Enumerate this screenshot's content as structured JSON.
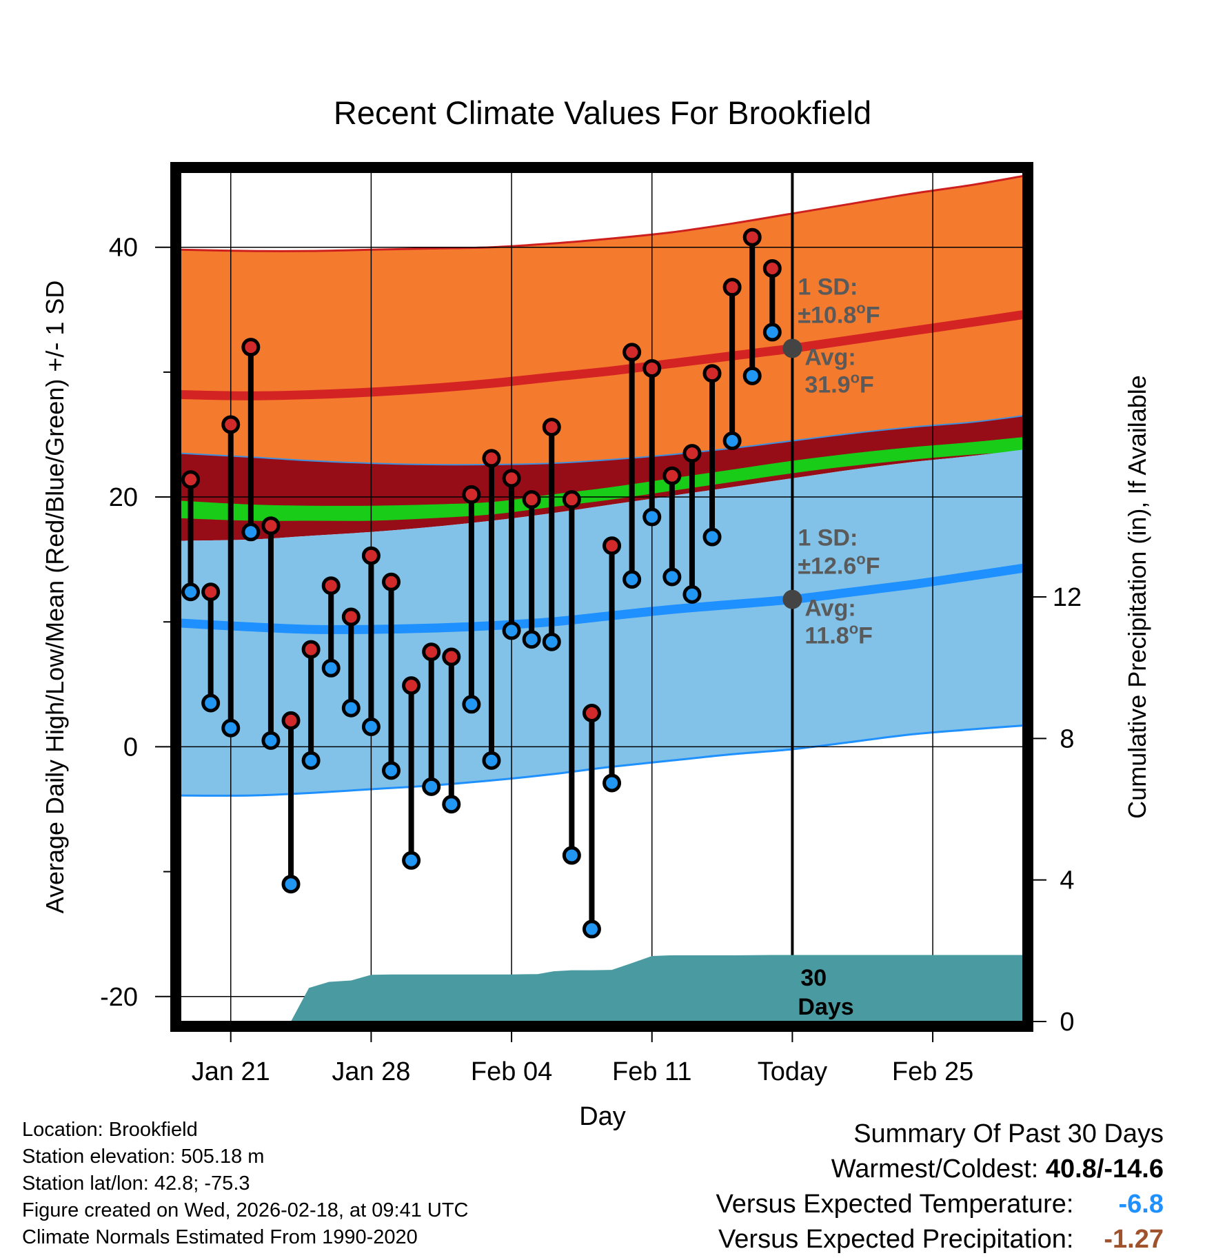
{
  "chart_data": {
    "type": "line",
    "title": "Recent Climate Values For Brookfield",
    "xlabel": "Day",
    "ylabel": "Average Daily High/Low/Mean (Red/Blue/Green) +/- 1 SD",
    "ylabel_right": "Cumulative Precipitation (in), If Available",
    "ylim": [
      -22,
      46
    ],
    "y_right_lim": [
      0,
      24
    ],
    "xlim": [
      -0.5,
      41.5
    ],
    "x_ticks": [
      {
        "day": 2,
        "label": "Jan 21"
      },
      {
        "day": 9,
        "label": "Jan 28"
      },
      {
        "day": 16,
        "label": "Feb 04"
      },
      {
        "day": 23,
        "label": "Feb 11"
      },
      {
        "day": 30,
        "label": "Today"
      },
      {
        "day": 37,
        "label": "Feb 25"
      }
    ],
    "y_ticks": [
      -20,
      0,
      20,
      40
    ],
    "y_right_ticks": [
      0,
      4,
      8,
      12
    ],
    "today_day": 30,
    "normals": {
      "days": [
        -0.5,
        3,
        6,
        9,
        12,
        15,
        18,
        21,
        24,
        27,
        30,
        33,
        36,
        39,
        41.5
      ],
      "high_mean": [
        28.2,
        28.1,
        28.2,
        28.4,
        28.7,
        29.1,
        29.6,
        30.1,
        30.7,
        31.3,
        31.9,
        32.6,
        33.3,
        34.0,
        34.6
      ],
      "high_upper": [
        39.8,
        39.7,
        39.7,
        39.8,
        39.9,
        40.0,
        40.3,
        40.7,
        41.2,
        41.9,
        42.7,
        43.5,
        44.3,
        45.0,
        45.7
      ],
      "high_lower": [
        23.5,
        23.2,
        22.9,
        22.7,
        22.6,
        22.6,
        22.7,
        23.0,
        23.4,
        23.9,
        24.5,
        25.1,
        25.6,
        26.0,
        26.5
      ],
      "mean_upper": [
        19.7,
        19.4,
        19.3,
        19.3,
        19.4,
        19.6,
        20.2,
        20.8,
        21.5,
        22.2,
        22.9,
        23.5,
        24.0,
        24.4,
        24.8
      ],
      "mean_lower": [
        18.3,
        18.1,
        18.1,
        18.1,
        18.3,
        18.6,
        19.2,
        19.8,
        20.5,
        21.2,
        21.9,
        22.5,
        23.0,
        23.4,
        23.6
      ],
      "low_upper": [
        16.5,
        16.6,
        16.9,
        17.2,
        17.6,
        18.1,
        18.7,
        19.4,
        20.1,
        20.8,
        21.5,
        22.2,
        22.8,
        23.3,
        23.8
      ],
      "low_mean": [
        9.9,
        9.6,
        9.4,
        9.4,
        9.5,
        9.7,
        10.0,
        10.5,
        11.0,
        11.4,
        11.8,
        12.4,
        13.0,
        13.7,
        14.3
      ],
      "low_lower": [
        -3.9,
        -3.9,
        -3.7,
        -3.4,
        -3.1,
        -2.7,
        -2.2,
        -1.6,
        -1.1,
        -0.6,
        -0.2,
        0.4,
        1.0,
        1.4,
        1.7
      ]
    },
    "daily_highs": [
      21.4,
      12.4,
      25.8,
      32.0,
      17.7,
      2.1,
      7.8,
      12.9,
      10.4,
      15.3,
      13.2,
      4.9,
      7.6,
      7.2,
      20.2,
      23.1,
      21.5,
      19.8,
      25.6,
      19.8,
      2.7,
      16.1,
      31.6,
      30.3,
      21.7,
      23.5,
      29.9,
      36.8,
      40.8,
      38.3
    ],
    "daily_lows": [
      12.4,
      3.5,
      1.5,
      17.2,
      0.5,
      -11.0,
      -1.1,
      6.3,
      3.1,
      1.6,
      -1.9,
      -9.1,
      -3.2,
      -4.6,
      3.4,
      -1.1,
      9.3,
      8.6,
      8.4,
      -8.7,
      -14.6,
      -2.9,
      13.4,
      18.4,
      13.6,
      12.2,
      16.8,
      24.5,
      29.7,
      33.2
    ],
    "precip_cumulative": {
      "days": [
        5,
        5.9,
        6.9,
        8,
        9,
        10,
        12,
        14,
        16,
        17.3,
        18.1,
        19,
        20,
        21,
        22,
        23,
        23.9,
        25,
        27,
        29,
        30,
        32,
        34,
        36,
        38,
        40,
        41.5
      ],
      "values": [
        0,
        0.95,
        1.12,
        1.16,
        1.32,
        1.33,
        1.33,
        1.33,
        1.33,
        1.34,
        1.42,
        1.45,
        1.45,
        1.46,
        1.65,
        1.85,
        1.87,
        1.87,
        1.87,
        1.88,
        1.88,
        1.88,
        1.88,
        1.88,
        1.88,
        1.88,
        1.88
      ]
    },
    "annotations": {
      "high_sd_label": "1 SD:",
      "high_sd_value": "±10.8",
      "high_avg_label": "Avg:",
      "high_avg_value": "31.9",
      "high_avg": 31.9,
      "low_sd_label": "1 SD:",
      "low_sd_value": "±12.6",
      "low_avg_label": "Avg:",
      "low_avg_value": "11.8",
      "low_avg": 11.8,
      "deg_unit": "o",
      "temp_unit": "F",
      "precip_label_line1": "30",
      "precip_label_line2": "Days"
    },
    "colors": {
      "high_band": "#f47a2e",
      "high_line": "#d42323",
      "high_border": "#ce1f1f",
      "mean_band_dark": "#960d17",
      "mean_band": "#18cc18",
      "low_band": "#82c2e8",
      "low_line": "#1e90ff",
      "precip": "#4a9ba1",
      "high_dot": "#d22a2a",
      "low_dot": "#2196f3",
      "annotation": "#5a5a5a",
      "avg_marker": "#444444"
    }
  },
  "info": {
    "location": "Location: Brookfield",
    "elevation": "Station elevation: 505.18 m",
    "latlon": "Station lat/lon: 42.8; -75.3",
    "created": "Figure created on Wed, 2026-02-18, at 09:41 UTC",
    "normals": "Climate Normals Estimated From 1990-2020"
  },
  "summary": {
    "title": "Summary Of Past 30 Days",
    "warmest_label": "Warmest/Coldest: ",
    "warmest_value": "40.8/-14.6",
    "temp_label": "Versus Expected Temperature: ",
    "temp_value": "-6.8",
    "temp_color": "#1e90ff",
    "precip_label": "Versus Expected Precipitation: ",
    "precip_value": "-1.27",
    "precip_color": "#a0522d"
  }
}
